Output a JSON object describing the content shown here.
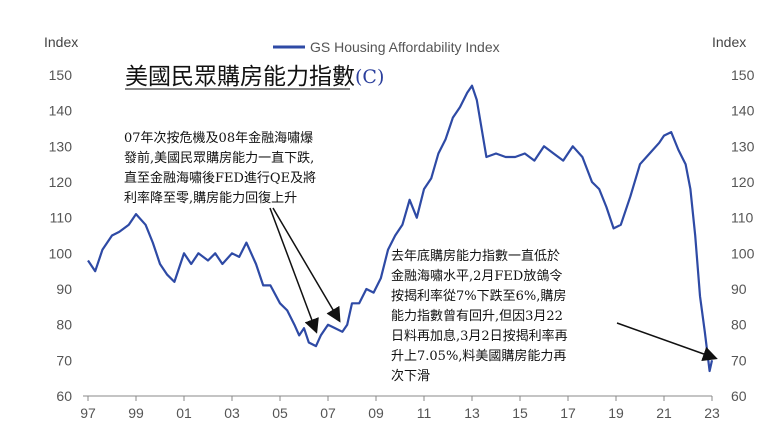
{
  "chart_data": {
    "type": "line",
    "left_axis_title": "Index",
    "right_axis_title": "Index",
    "ylim": [
      60,
      150
    ],
    "y_ticks": [
      "60",
      "70",
      "80",
      "90",
      "100",
      "110",
      "120",
      "130",
      "140",
      "150"
    ],
    "x_ticks": [
      "97",
      "99",
      "01",
      "03",
      "05",
      "07",
      "09",
      "11",
      "13",
      "15",
      "17",
      "19",
      "21",
      "23"
    ],
    "series": [
      {
        "name": "GS Housing Affordability Index",
        "color": "#2e4aa5",
        "x": [
          1997.0,
          1997.3,
          1997.6,
          1998.0,
          1998.3,
          1998.7,
          1999.0,
          1999.4,
          1999.7,
          2000.0,
          2000.3,
          2000.6,
          2001.0,
          2001.3,
          2001.6,
          2002.0,
          2002.3,
          2002.6,
          2003.0,
          2003.3,
          2003.6,
          2004.0,
          2004.3,
          2004.6,
          2005.0,
          2005.3,
          2005.6,
          2005.8,
          2006.0,
          2006.2,
          2006.5,
          2006.7,
          2007.0,
          2007.3,
          2007.6,
          2007.8,
          2008.0,
          2008.3,
          2008.6,
          2008.9,
          2009.2,
          2009.5,
          2009.8,
          2010.1,
          2010.4,
          2010.7,
          2011.0,
          2011.3,
          2011.6,
          2011.9,
          2012.2,
          2012.5,
          2012.8,
          2013.0,
          2013.2,
          2013.4,
          2013.6,
          2014.0,
          2014.4,
          2014.8,
          2015.2,
          2015.6,
          2016.0,
          2016.4,
          2016.8,
          2017.2,
          2017.6,
          2018.0,
          2018.3,
          2018.6,
          2018.9,
          2019.2,
          2019.6,
          2020.0,
          2020.4,
          2020.8,
          2021.0,
          2021.3,
          2021.6,
          2021.9,
          2022.1,
          2022.3,
          2022.5,
          2022.7,
          2022.9,
          2023.0
        ],
        "values": [
          98,
          95,
          101,
          105,
          106,
          108,
          111,
          108,
          103,
          97,
          94,
          92,
          100,
          97,
          100,
          98,
          100,
          97,
          100,
          99,
          103,
          97,
          91,
          91,
          86,
          84,
          80,
          77,
          79,
          75,
          74,
          77,
          80,
          79,
          78,
          80,
          86,
          86,
          90,
          89,
          93,
          101,
          105,
          108,
          115,
          110,
          118,
          121,
          128,
          132,
          138,
          141,
          145,
          147,
          143,
          135,
          127,
          128,
          127,
          127,
          128,
          126,
          130,
          128,
          126,
          130,
          127,
          120,
          118,
          113,
          107,
          108,
          116,
          125,
          128,
          131,
          133,
          134,
          129,
          125,
          118,
          105,
          88,
          78,
          67,
          70
        ]
      }
    ]
  },
  "title_zh": "美國民眾購房能力指數",
  "title_suffix": "(C)",
  "annotation_left": [
    "07年次按危機及08年金融海嘯爆",
    "發前,美國民眾購房能力一直下跌,",
    "直至金融海嘯後FED進行QE及將",
    "利率降至零,購房能力回復上升"
  ],
  "annotation_right": [
    "去年底購房能力指數一直低於",
    "金融海嘯水平,2月FED放鴿令",
    "按揭利率從7%下跌至6%,購房",
    "能力指數曾有回升,但因3月22",
    "日料再加息,3月2日按揭利率再",
    "升上7.05%,料美國購房能力再",
    "次下滑"
  ]
}
